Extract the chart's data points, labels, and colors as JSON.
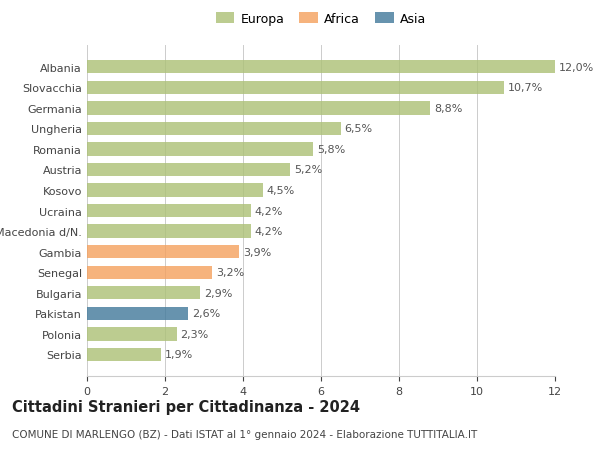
{
  "categories": [
    "Albania",
    "Slovacchia",
    "Germania",
    "Ungheria",
    "Romania",
    "Austria",
    "Kosovo",
    "Ucraina",
    "Macedonia d/N.",
    "Gambia",
    "Senegal",
    "Bulgaria",
    "Pakistan",
    "Polonia",
    "Serbia"
  ],
  "values": [
    12.0,
    10.7,
    8.8,
    6.5,
    5.8,
    5.2,
    4.5,
    4.2,
    4.2,
    3.9,
    3.2,
    2.9,
    2.6,
    2.3,
    1.9
  ],
  "labels": [
    "12,0%",
    "10,7%",
    "8,8%",
    "6,5%",
    "5,8%",
    "5,2%",
    "4,5%",
    "4,2%",
    "4,2%",
    "3,9%",
    "3,2%",
    "2,9%",
    "2,6%",
    "2,3%",
    "1,9%"
  ],
  "continents": [
    "Europa",
    "Europa",
    "Europa",
    "Europa",
    "Europa",
    "Europa",
    "Europa",
    "Europa",
    "Europa",
    "Africa",
    "Africa",
    "Europa",
    "Asia",
    "Europa",
    "Europa"
  ],
  "colors": {
    "Europa": "#adc178",
    "Africa": "#f4a261",
    "Asia": "#457b9d"
  },
  "xlim": [
    0,
    12
  ],
  "xticks": [
    0,
    2,
    4,
    6,
    8,
    10,
    12
  ],
  "title": "Cittadini Stranieri per Cittadinanza - 2024",
  "subtitle": "COMUNE DI MARLENGO (BZ) - Dati ISTAT al 1° gennaio 2024 - Elaborazione TUTTITALIA.IT",
  "background_color": "#ffffff",
  "bar_alpha": 0.82,
  "grid_color": "#cccccc",
  "label_fontsize": 8,
  "tick_fontsize": 8,
  "title_fontsize": 10.5,
  "subtitle_fontsize": 7.5,
  "legend_fontsize": 9
}
